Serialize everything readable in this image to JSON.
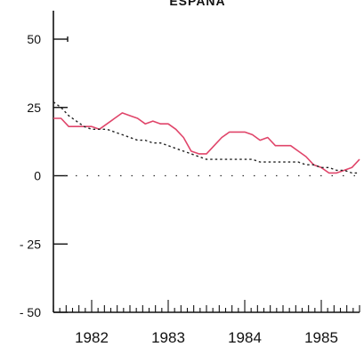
{
  "chart_data": {
    "type": "line",
    "title": "ESPAÑA",
    "ylim": [
      -50,
      50
    ],
    "yticks": [
      50,
      25,
      0,
      -25,
      -50
    ],
    "ytick_labels": [
      "50",
      "25",
      "0",
      "- 25",
      "- 50"
    ],
    "xlim": [
      1981.5,
      1985.5
    ],
    "year_labels": [
      {
        "x": 1982,
        "label": "1982"
      },
      {
        "x": 1983,
        "label": "1983"
      },
      {
        "x": 1984,
        "label": "1984"
      },
      {
        "x": 1985,
        "label": "1985"
      }
    ],
    "grid": false,
    "zero_line": true,
    "series": [
      {
        "style": "solid",
        "color": "#e0456a",
        "x": [
          1981.5,
          1981.6,
          1981.7,
          1981.8,
          1981.9,
          1982.0,
          1982.1,
          1982.2,
          1982.3,
          1982.4,
          1982.5,
          1982.6,
          1982.7,
          1982.8,
          1982.9,
          1983.0,
          1983.1,
          1983.2,
          1983.3,
          1983.4,
          1983.5,
          1983.6,
          1983.7,
          1983.8,
          1983.9,
          1984.0,
          1984.1,
          1984.2,
          1984.3,
          1984.4,
          1984.5,
          1984.6,
          1984.7,
          1984.8,
          1984.9,
          1985.0,
          1985.1,
          1985.2,
          1985.3,
          1985.4,
          1985.5
        ],
        "y": [
          21,
          21,
          18,
          18,
          18,
          18,
          17,
          19,
          21,
          23,
          22,
          21,
          19,
          20,
          19,
          19,
          17,
          14,
          9,
          8,
          8,
          11,
          14,
          16,
          16,
          16,
          15,
          13,
          14,
          11,
          11,
          11,
          9,
          7,
          4,
          3,
          1,
          1,
          2,
          3,
          6
        ]
      },
      {
        "style": "dotted",
        "color": "#222222",
        "x": [
          1981.5,
          1981.6,
          1981.7,
          1981.8,
          1981.9,
          1982.0,
          1982.1,
          1982.2,
          1982.3,
          1982.4,
          1982.5,
          1982.6,
          1982.7,
          1982.8,
          1982.9,
          1983.0,
          1983.1,
          1983.2,
          1983.3,
          1983.4,
          1983.5,
          1983.6,
          1983.7,
          1983.8,
          1983.9,
          1984.0,
          1984.1,
          1984.2,
          1984.3,
          1984.4,
          1984.5,
          1984.6,
          1984.7,
          1984.8,
          1984.9,
          1985.0,
          1985.1,
          1985.2,
          1985.3,
          1985.4,
          1985.5
        ],
        "y": [
          27,
          25,
          22,
          20,
          18,
          17,
          17,
          17,
          16,
          15,
          14,
          13,
          13,
          12,
          12,
          11,
          10,
          9,
          8,
          7,
          6,
          6,
          6,
          6,
          6,
          6,
          6,
          5,
          5,
          5,
          5,
          5,
          5,
          4,
          4,
          3,
          3,
          2,
          2,
          1,
          1
        ]
      }
    ]
  }
}
